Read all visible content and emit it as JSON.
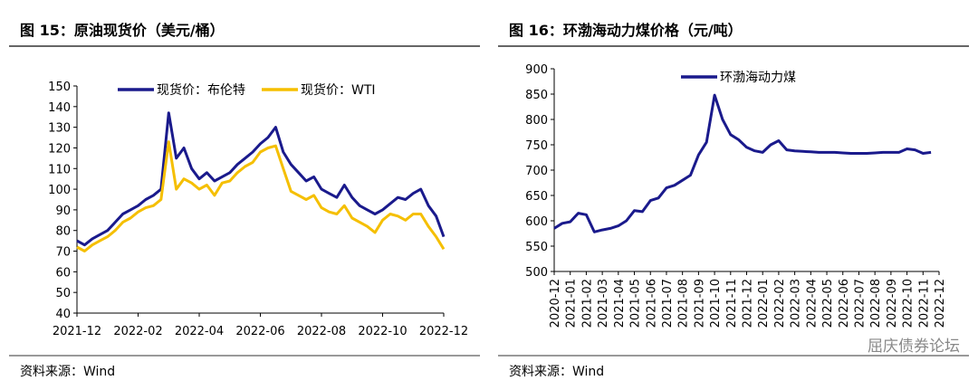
{
  "chart_data": [
    {
      "type": "line",
      "title": "图 15：原油现货价（美元/桶）",
      "source": "资料来源：Wind",
      "categories": [
        "2021-12",
        null,
        null,
        null,
        null,
        null,
        null,
        null,
        "2022-02",
        null,
        null,
        null,
        null,
        null,
        null,
        null,
        "2022-04",
        null,
        null,
        null,
        null,
        null,
        null,
        null,
        "2022-06",
        null,
        null,
        null,
        null,
        null,
        null,
        null,
        "2022-08",
        null,
        null,
        null,
        null,
        null,
        null,
        null,
        "2022-10",
        null,
        null,
        null,
        null,
        null,
        null,
        null,
        "2022-12"
      ],
      "series": [
        {
          "name": "现货价：布伦特",
          "color": "#1a1a8c",
          "values": [
            75,
            73,
            76,
            78,
            80,
            84,
            88,
            90,
            92,
            95,
            97,
            100,
            137,
            115,
            120,
            110,
            105,
            108,
            104,
            106,
            108,
            112,
            115,
            118,
            122,
            125,
            130,
            118,
            112,
            108,
            104,
            106,
            100,
            98,
            96,
            102,
            96,
            92,
            90,
            88,
            90,
            93,
            96,
            95,
            98,
            100,
            92,
            87,
            77
          ]
        },
        {
          "name": "现货价：WTI",
          "color": "#f5bf00",
          "values": [
            72,
            70,
            73,
            75,
            77,
            80,
            84,
            86,
            89,
            91,
            92,
            95,
            123,
            100,
            105,
            103,
            100,
            102,
            97,
            103,
            104,
            108,
            111,
            113,
            118,
            120,
            121,
            110,
            99,
            97,
            95,
            97,
            91,
            89,
            88,
            92,
            86,
            84,
            82,
            79,
            85,
            88,
            87,
            85,
            88,
            88,
            82,
            77,
            71
          ]
        }
      ],
      "ylim": [
        40,
        150
      ],
      "yticks": [
        40,
        50,
        60,
        70,
        80,
        90,
        100,
        110,
        120,
        130,
        140,
        150
      ],
      "legend": "top",
      "xtick_rotation": 0
    },
    {
      "type": "line",
      "title": "图 16：环渤海动力煤价格（元/吨）",
      "source": "资料来源：Wind",
      "categories": [
        "2020-12",
        null,
        "2021-01",
        null,
        "2021-02",
        null,
        "2021-03",
        null,
        "2021-04",
        null,
        "2021-05",
        null,
        "2021-06",
        null,
        "2021-07",
        null,
        "2021-08",
        null,
        "2021-09",
        null,
        "2021-10",
        null,
        "2021-11",
        null,
        "2021-12",
        null,
        "2022-01",
        null,
        "2022-02",
        null,
        "2022-03",
        null,
        "2022-04",
        null,
        "2022-05",
        null,
        "2022-06",
        null,
        "2022-07",
        null,
        "2022-08",
        null,
        "2022-09",
        null,
        "2022-10",
        null,
        "2022-11",
        null,
        "2022-12"
      ],
      "series": [
        {
          "name": "环渤海动力煤",
          "color": "#1a1a8c",
          "values": [
            585,
            595,
            598,
            615,
            612,
            578,
            582,
            585,
            590,
            600,
            620,
            618,
            640,
            645,
            665,
            670,
            680,
            690,
            730,
            755,
            848,
            800,
            770,
            760,
            745,
            738,
            735,
            750,
            758,
            740,
            738,
            737,
            736,
            735,
            735,
            735,
            734,
            733,
            733,
            733,
            734,
            735,
            735,
            735,
            742,
            740,
            733,
            735,
            null
          ]
        }
      ],
      "ylim": [
        500,
        900
      ],
      "yticks": [
        500,
        550,
        600,
        650,
        700,
        750,
        800,
        850,
        900
      ],
      "legend": "upper left",
      "xtick_rotation": -90
    }
  ],
  "watermark": "屈庆债券论坛"
}
